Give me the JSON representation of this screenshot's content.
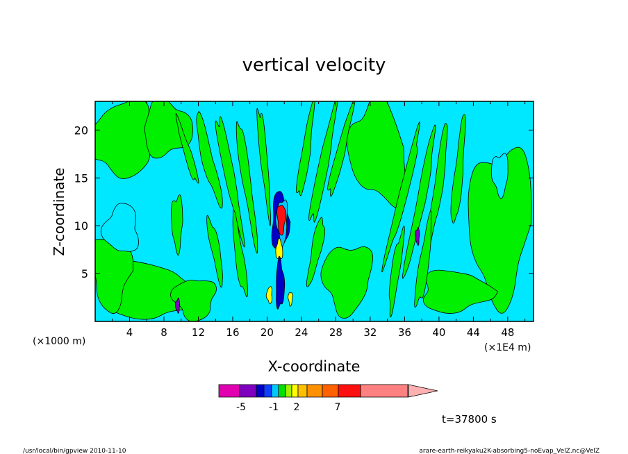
{
  "chart_data": {
    "type": "heatmap",
    "title": "vertical velocity",
    "xlabel": "X-coordinate",
    "ylabel": "Z-coordinate",
    "x_units_left": "(×1000 m)",
    "x_units_right": "(×1E4 m)",
    "xlim": [
      0,
      51
    ],
    "ylim": [
      0,
      23
    ],
    "x_ticks": [
      4,
      8,
      12,
      16,
      20,
      24,
      28,
      32,
      36,
      40,
      44,
      48
    ],
    "y_ticks": [
      5,
      10,
      15,
      20
    ],
    "time_label": "t=37800 s",
    "colorbar": {
      "colors": [
        "#e000b0",
        "#8000c0",
        "#0000c8",
        "#1040ff",
        "#00c8ff",
        "#00e000",
        "#a0f000",
        "#ffff00",
        "#ffc000",
        "#ff9000",
        "#ff6000",
        "#ff1010",
        "#ff8080",
        "#ffb0b0"
      ],
      "tick_labels": [
        "-5",
        "-1",
        "2",
        "7"
      ]
    },
    "dominant_field": {
      "background": "#00e8ff",
      "updraft_weak": "#00f000"
    },
    "convective_core_x": 21.5
  },
  "footer": {
    "left": "/usr/local/bin/gpview   2010-11-10",
    "right": "arare-earth-reikyaku2K-absorbing5-noEvap_VelZ.nc@VelZ"
  }
}
